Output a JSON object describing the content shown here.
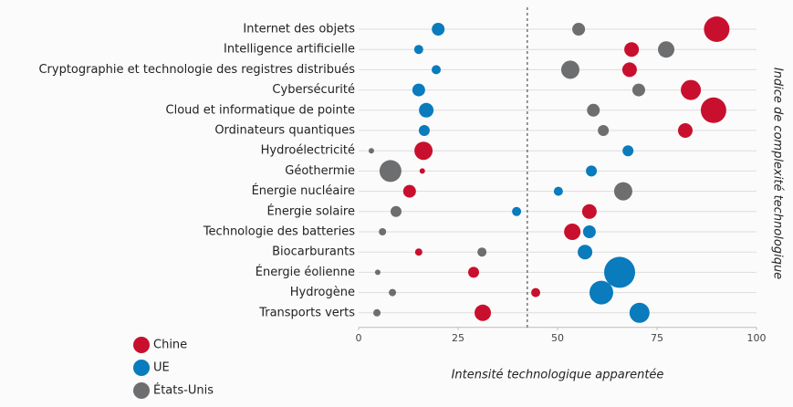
{
  "chart_data": {
    "type": "bubble",
    "categories": [
      "Internet des objets",
      "Intelligence artificielle",
      "Cryptographie et technologie des registres distribués",
      "Cybersécurité",
      "Cloud et informatique de pointe",
      "Ordinateurs quantiques",
      "Hydroélectricité",
      "Géothermie",
      "Énergie nucléaire",
      "Énergie solaire",
      "Technologie des batteries",
      "Biocarburants",
      "Énergie éolienne",
      "Hydrogène",
      "Transports verts"
    ],
    "x_label": "Intensité technologique apparentée",
    "y_label": "Indice de complexité technologique",
    "xlim": [
      0,
      100
    ],
    "xticks": [
      0,
      25,
      50,
      75,
      100
    ],
    "reference_line": 42.4,
    "grid": true,
    "series": [
      {
        "name": "Chine",
        "color": "#c8102e",
        "values": [
          90,
          68.6,
          68.1,
          83.5,
          89.2,
          82.1,
          16.3,
          16,
          12.8,
          58,
          53.7,
          15.1,
          28.9,
          44.5,
          31.2
        ],
        "sizes": [
          14,
          8,
          8,
          11,
          14,
          8,
          10,
          3,
          7,
          8,
          9,
          4,
          6,
          5,
          9
        ]
      },
      {
        "name": "UE",
        "color": "#0a7bbd",
        "values": [
          20,
          15.1,
          19.5,
          15.1,
          17,
          16.5,
          67.7,
          58.5,
          50.2,
          39.7,
          58,
          56.9,
          65.6,
          61,
          70.6
        ],
        "sizes": [
          7,
          5,
          5,
          7,
          8,
          6,
          6,
          6,
          5,
          5,
          7,
          8,
          17,
          13,
          11
        ]
      },
      {
        "name": "États-Unis",
        "color": "#6d6e70",
        "values": [
          55.3,
          77.3,
          53.2,
          70.4,
          59,
          61.5,
          3.2,
          8,
          66.5,
          9.4,
          6,
          31,
          4.8,
          8.5,
          4.6
        ],
        "sizes": [
          7,
          9,
          10,
          7,
          7,
          6,
          3,
          12,
          10,
          6,
          4,
          5,
          3,
          4,
          4
        ]
      }
    ]
  }
}
